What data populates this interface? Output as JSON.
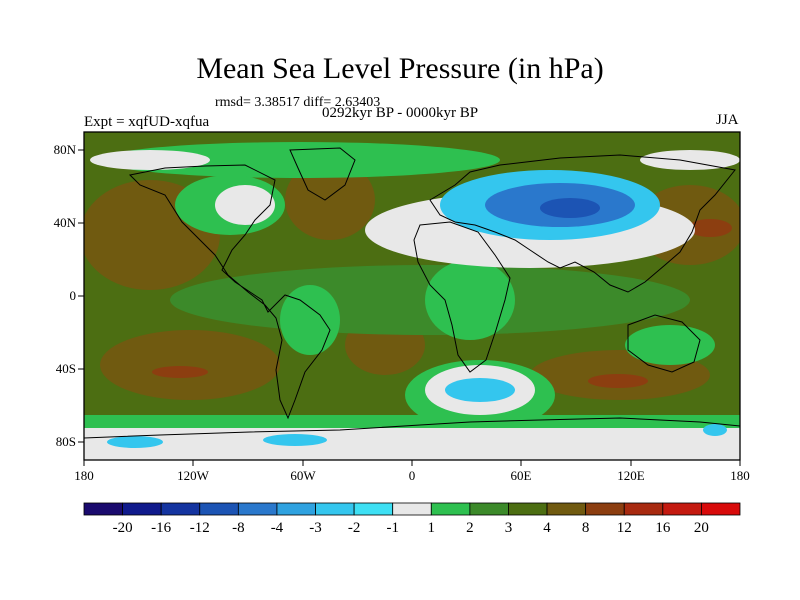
{
  "title": "Mean Sea Level Pressure (in hPa)",
  "stats": "rmsd= 3.38517 diff= 2.63403",
  "experiment": "Expt = xqfUD-xqfua",
  "period": "0292kyr BP - 0000kyr BP",
  "season": "JJA",
  "y_axis_labels": [
    "80N",
    "40N",
    "0",
    "40S",
    "80S"
  ],
  "x_axis_labels": [
    "180",
    "120W",
    "60W",
    "0",
    "60E",
    "120E",
    "180"
  ],
  "colorbar": {
    "labels": [
      "-20",
      "-16",
      "-12",
      "-8",
      "-4",
      "-3",
      "-2",
      "-1",
      "1",
      "2",
      "3",
      "4",
      "8",
      "12",
      "16",
      "20"
    ],
    "colors": [
      "#1a0a6e",
      "#101a8c",
      "#1434a0",
      "#1c54b4",
      "#2a78cc",
      "#2fa2e0",
      "#34c6ee",
      "#3ee0f4",
      "#e8e8e8",
      "#2ec050",
      "#3c8a2a",
      "#4c6e12",
      "#705a10",
      "#8c3e10",
      "#a82a10",
      "#c41a10",
      "#d80a0a"
    ]
  },
  "field_colors": {
    "ocean_base": "#4c6e12",
    "brown": "#705a10",
    "green_light": "#2ec050",
    "green_mid": "#3c8a2a",
    "white": "#e8e8e8",
    "cyan": "#34c6ee",
    "blue": "#2a78cc",
    "blue_deep": "#1c54b4",
    "red_brown": "#8c3e10"
  }
}
